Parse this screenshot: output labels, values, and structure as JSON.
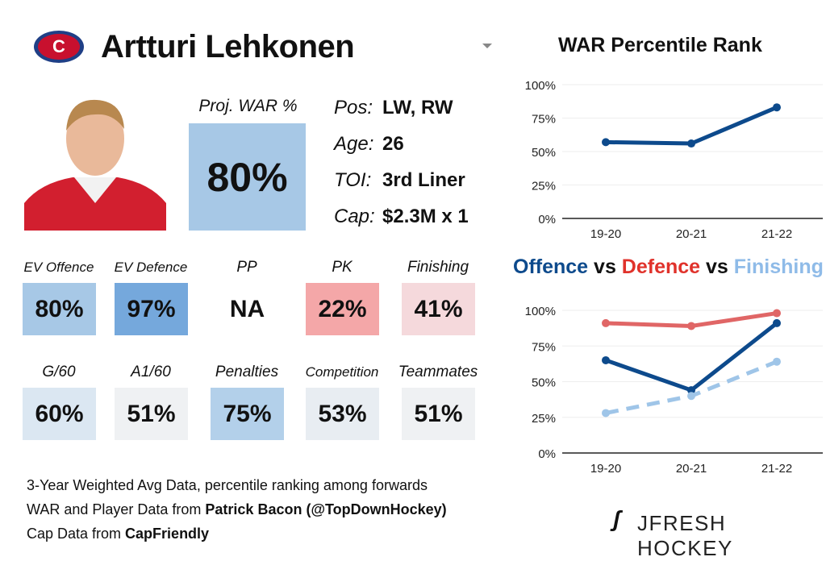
{
  "player": {
    "name": "Artturi Lehkonen",
    "team_logo_letters": "CH"
  },
  "proj_war": {
    "label": "Proj. WAR %",
    "value": "80%",
    "color": "#a7c8e6"
  },
  "info": [
    {
      "k": "Pos:",
      "v": "LW, RW"
    },
    {
      "k": "Age:",
      "v": "26"
    },
    {
      "k": "TOI:",
      "v": "3rd Liner"
    },
    {
      "k": "Cap:",
      "v": "$2.3M x 1"
    }
  ],
  "stats": [
    {
      "label": "EV Offence",
      "value": "80%",
      "color": "#a7c8e6"
    },
    {
      "label": "EV Defence",
      "value": "97%",
      "color": "#75a8dc"
    },
    {
      "label": "PP",
      "value": "NA",
      "color": "#ffffff"
    },
    {
      "label": "PK",
      "value": "22%",
      "color": "#f4a7a8"
    },
    {
      "label": "Finishing",
      "value": "41%",
      "color": "#f5d9dc"
    },
    {
      "label": "G/60",
      "value": "60%",
      "color": "#dbe7f2"
    },
    {
      "label": "A1/60",
      "value": "51%",
      "color": "#eff1f3"
    },
    {
      "label": "Penalties",
      "value": "75%",
      "color": "#b3d0ea"
    },
    {
      "label": "Competition",
      "value": "53%",
      "color": "#e8edf2"
    },
    {
      "label": "Teammates",
      "value": "51%",
      "color": "#eff1f3"
    }
  ],
  "footer": {
    "line1": "3-Year Weighted Avg Data, percentile ranking among forwards",
    "line2a": "WAR and Player Data from ",
    "line2b": "Patrick Bacon (@TopDownHockey)",
    "line3a": "Cap Data from ",
    "line3b": "CapFriendly"
  },
  "brand": "JFRESH HOCKEY",
  "chart_titles": {
    "war": "WAR Percentile Rank",
    "offence": "Offence",
    "vs1": " vs ",
    "defence": "Defence",
    "vs2": " vs ",
    "finishing": "Finishing"
  },
  "chart_data": [
    {
      "type": "line",
      "title": "WAR Percentile Rank",
      "categories": [
        "19-20",
        "20-21",
        "21-22"
      ],
      "yticks": [
        "0%",
        "25%",
        "50%",
        "75%",
        "100%"
      ],
      "ylim": [
        0,
        100
      ],
      "grid": true,
      "series": [
        {
          "values": [
            57,
            56,
            83
          ],
          "color": "#0d4a8c",
          "dash": false
        }
      ]
    },
    {
      "type": "line",
      "title": "Offence vs Defence vs Finishing",
      "categories": [
        "19-20",
        "20-21",
        "21-22"
      ],
      "yticks": [
        "0%",
        "25%",
        "50%",
        "75%",
        "100%"
      ],
      "ylim": [
        0,
        100
      ],
      "grid": true,
      "series": [
        {
          "name": "Defence",
          "values": [
            91,
            89,
            98
          ],
          "color": "#e06666",
          "dash": false
        },
        {
          "name": "Offence",
          "values": [
            65,
            44,
            91
          ],
          "color": "#0d4a8c",
          "dash": false
        },
        {
          "name": "Finishing",
          "values": [
            28,
            40,
            64
          ],
          "color": "#9fc5e8",
          "dash": true
        }
      ]
    }
  ]
}
